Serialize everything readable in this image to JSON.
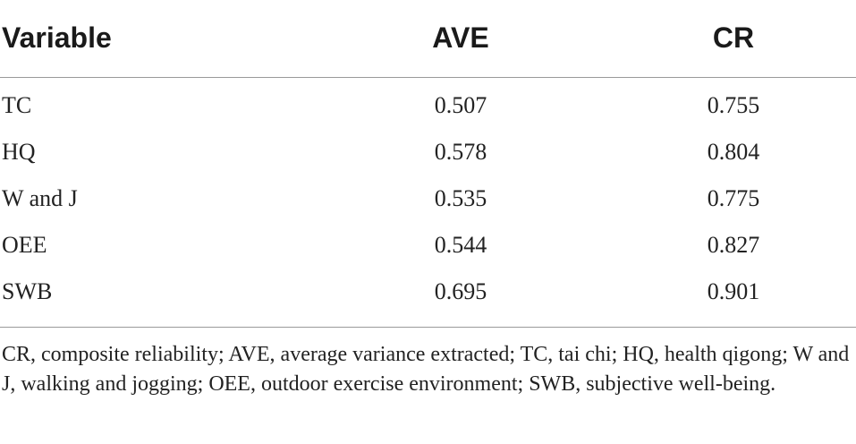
{
  "table": {
    "headers": {
      "variable": "Variable",
      "ave": "AVE",
      "cr": "CR"
    },
    "rows": [
      {
        "variable": "TC",
        "ave": "0.507",
        "cr": "0.755"
      },
      {
        "variable": "HQ",
        "ave": "0.578",
        "cr": "0.804"
      },
      {
        "variable": "W and J",
        "ave": "0.535",
        "cr": "0.775"
      },
      {
        "variable": "OEE",
        "ave": "0.544",
        "cr": "0.827"
      },
      {
        "variable": "SWB",
        "ave": "0.695",
        "cr": "0.901"
      }
    ],
    "footnote": "CR, composite reliability; AVE, average variance extracted; TC, tai chi; HQ, health qigong; W and J, walking and jogging; OEE, outdoor exercise environment; SWB, subjective well-being."
  }
}
